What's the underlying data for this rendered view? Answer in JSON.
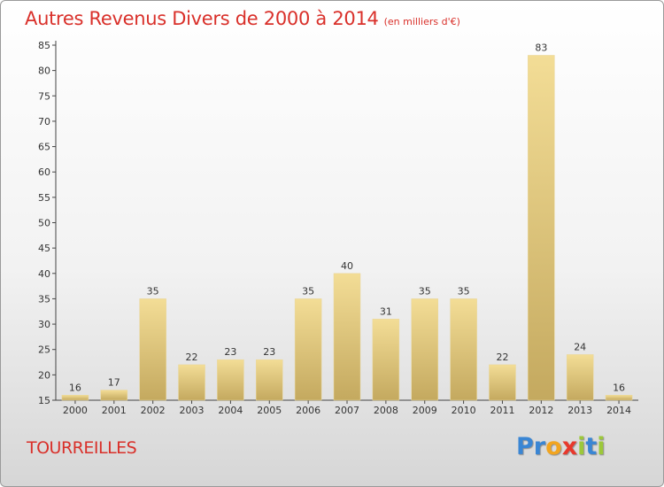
{
  "chart_data": {
    "type": "bar",
    "title": "Autres Revenus Divers de 2000 à 2014",
    "unit": "(en milliers d'€)",
    "categories": [
      "2000",
      "2001",
      "2002",
      "2003",
      "2004",
      "2005",
      "2006",
      "2007",
      "2008",
      "2009",
      "2010",
      "2011",
      "2012",
      "2013",
      "2014"
    ],
    "values": [
      16,
      17,
      35,
      22,
      23,
      23,
      35,
      40,
      31,
      35,
      35,
      22,
      83,
      24,
      16
    ],
    "ylim": [
      15,
      85
    ],
    "yticks": [
      15,
      20,
      25,
      30,
      35,
      40,
      45,
      50,
      55,
      60,
      65,
      70,
      75,
      80,
      85
    ],
    "grid": false,
    "bar_color": "#e6cf8a"
  },
  "location": "TOURREILLES",
  "logo": {
    "letters": [
      "P",
      "r",
      "o",
      "x",
      "i",
      "t",
      "i"
    ],
    "colors": [
      "#3a86d4",
      "#3a86d4",
      "#f2a520",
      "#e8382c",
      "#9cc83a",
      "#3a86d4",
      "#9cc83a"
    ]
  }
}
